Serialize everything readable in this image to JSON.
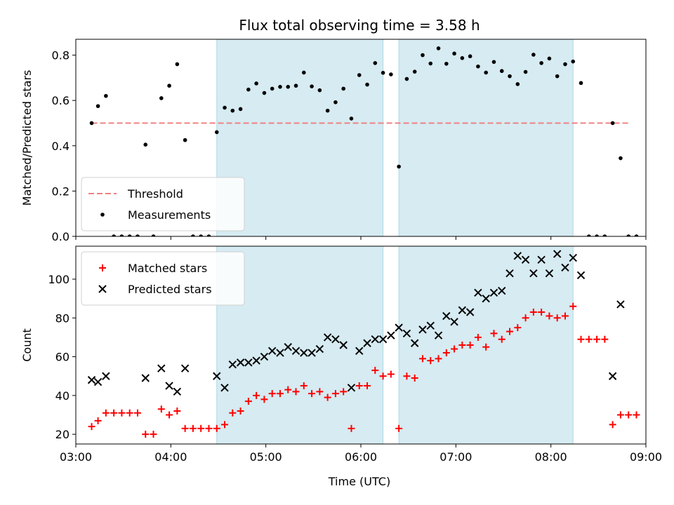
{
  "chart_data": [
    {
      "type": "scatter",
      "title": "Flux total observing time = 3.58 h",
      "xlabel": "",
      "ylabel": "Matched/Predicted stars",
      "xlim": [
        "03:00",
        "09:00"
      ],
      "ylim": [
        0,
        0.87
      ],
      "yticks": [
        "0.0",
        "0.2",
        "0.4",
        "0.6",
        "0.8"
      ],
      "grid": false,
      "legend_position": "lower-left",
      "shaded_intervals": [
        [
          "04:29",
          "06:14"
        ],
        [
          "06:24",
          "08:14"
        ]
      ],
      "threshold": {
        "name": "Threshold",
        "y": 0.5,
        "x_range": [
          "03:10",
          "08:50"
        ],
        "color": "#f08080",
        "style": "dashed"
      },
      "series": [
        {
          "name": "Measurements",
          "marker": "dot",
          "color": "#000000",
          "points": [
            [
              "03:10",
              0.5
            ],
            [
              "03:14",
              0.575
            ],
            [
              "03:19",
              0.62
            ],
            [
              "03:24",
              0.0
            ],
            [
              "03:29",
              0.0
            ],
            [
              "03:34",
              0.0
            ],
            [
              "03:39",
              0.0
            ],
            [
              "03:44",
              0.405
            ],
            [
              "03:49",
              0.0
            ],
            [
              "03:54",
              0.61
            ],
            [
              "03:59",
              0.665
            ],
            [
              "04:04",
              0.76
            ],
            [
              "04:09",
              0.425
            ],
            [
              "04:14",
              0.0
            ],
            [
              "04:19",
              0.0
            ],
            [
              "04:24",
              0.0
            ],
            [
              "04:29",
              0.46
            ],
            [
              "04:34",
              0.568
            ],
            [
              "04:39",
              0.555
            ],
            [
              "04:44",
              0.562
            ],
            [
              "04:49",
              0.648
            ],
            [
              "04:54",
              0.675
            ],
            [
              "04:59",
              0.633
            ],
            [
              "05:04",
              0.652
            ],
            [
              "05:09",
              0.66
            ],
            [
              "05:14",
              0.66
            ],
            [
              "05:19",
              0.665
            ],
            [
              "05:24",
              0.723
            ],
            [
              "05:29",
              0.662
            ],
            [
              "05:34",
              0.645
            ],
            [
              "05:39",
              0.555
            ],
            [
              "05:44",
              0.592
            ],
            [
              "05:49",
              0.652
            ],
            [
              "05:54",
              0.52
            ],
            [
              "05:59",
              0.712
            ],
            [
              "06:04",
              0.67
            ],
            [
              "06:09",
              0.765
            ],
            [
              "06:14",
              0.722
            ],
            [
              "06:19",
              0.715
            ],
            [
              "06:24",
              0.308
            ],
            [
              "06:29",
              0.695
            ],
            [
              "06:34",
              0.727
            ],
            [
              "06:39",
              0.8
            ],
            [
              "06:44",
              0.763
            ],
            [
              "06:49",
              0.83
            ],
            [
              "06:54",
              0.762
            ],
            [
              "06:59",
              0.807
            ],
            [
              "07:04",
              0.787
            ],
            [
              "07:09",
              0.795
            ],
            [
              "07:14",
              0.75
            ],
            [
              "07:19",
              0.723
            ],
            [
              "07:24",
              0.77
            ],
            [
              "07:29",
              0.73
            ],
            [
              "07:34",
              0.707
            ],
            [
              "07:39",
              0.672
            ],
            [
              "07:44",
              0.726
            ],
            [
              "07:49",
              0.802
            ],
            [
              "07:54",
              0.765
            ],
            [
              "07:59",
              0.785
            ],
            [
              "08:04",
              0.707
            ],
            [
              "08:09",
              0.76
            ],
            [
              "08:14",
              0.772
            ],
            [
              "08:19",
              0.677
            ],
            [
              "08:24",
              0.0
            ],
            [
              "08:29",
              0.0
            ],
            [
              "08:34",
              0.0
            ],
            [
              "08:39",
              0.5
            ],
            [
              "08:44",
              0.345
            ],
            [
              "08:49",
              0.0
            ],
            [
              "08:54",
              0.0
            ]
          ]
        }
      ]
    },
    {
      "type": "scatter",
      "title": "",
      "xlabel": "Time (UTC)",
      "ylabel": "Count",
      "xlim": [
        "03:00",
        "09:00"
      ],
      "xticks": [
        "03:00",
        "04:00",
        "05:00",
        "06:00",
        "07:00",
        "08:00",
        "09:00"
      ],
      "ylim": [
        15,
        117
      ],
      "yticks": [
        "20",
        "40",
        "60",
        "80",
        "100"
      ],
      "grid": false,
      "legend_position": "upper-left",
      "shaded_intervals": [
        [
          "04:29",
          "06:14"
        ],
        [
          "06:24",
          "08:14"
        ]
      ],
      "series": [
        {
          "name": "Matched stars",
          "marker": "plus",
          "color": "#ff0000",
          "points": [
            [
              "03:10",
              24
            ],
            [
              "03:14",
              27
            ],
            [
              "03:19",
              31
            ],
            [
              "03:24",
              31
            ],
            [
              "03:29",
              31
            ],
            [
              "03:34",
              31
            ],
            [
              "03:39",
              31
            ],
            [
              "03:44",
              20
            ],
            [
              "03:49",
              20
            ],
            [
              "03:54",
              33
            ],
            [
              "03:59",
              30
            ],
            [
              "04:04",
              32
            ],
            [
              "04:09",
              23
            ],
            [
              "04:14",
              23
            ],
            [
              "04:19",
              23
            ],
            [
              "04:24",
              23
            ],
            [
              "04:29",
              23
            ],
            [
              "04:34",
              25
            ],
            [
              "04:39",
              31
            ],
            [
              "04:44",
              32
            ],
            [
              "04:49",
              37
            ],
            [
              "04:54",
              40
            ],
            [
              "04:59",
              38
            ],
            [
              "05:04",
              41
            ],
            [
              "05:09",
              41
            ],
            [
              "05:14",
              43
            ],
            [
              "05:19",
              42
            ],
            [
              "05:24",
              45
            ],
            [
              "05:29",
              41
            ],
            [
              "05:34",
              42
            ],
            [
              "05:39",
              39
            ],
            [
              "05:44",
              41
            ],
            [
              "05:49",
              42
            ],
            [
              "05:54",
              23
            ],
            [
              "05:59",
              45
            ],
            [
              "06:04",
              45
            ],
            [
              "06:09",
              53
            ],
            [
              "06:14",
              50
            ],
            [
              "06:19",
              51
            ],
            [
              "06:24",
              23
            ],
            [
              "06:29",
              50
            ],
            [
              "06:34",
              49
            ],
            [
              "06:39",
              59
            ],
            [
              "06:44",
              58
            ],
            [
              "06:49",
              59
            ],
            [
              "06:54",
              62
            ],
            [
              "06:59",
              64
            ],
            [
              "07:04",
              66
            ],
            [
              "07:09",
              66
            ],
            [
              "07:14",
              70
            ],
            [
              "07:19",
              65
            ],
            [
              "07:24",
              72
            ],
            [
              "07:29",
              69
            ],
            [
              "07:34",
              73
            ],
            [
              "07:39",
              75
            ],
            [
              "07:44",
              80
            ],
            [
              "07:49",
              83
            ],
            [
              "07:54",
              83
            ],
            [
              "07:59",
              81
            ],
            [
              "08:04",
              80
            ],
            [
              "08:09",
              81
            ],
            [
              "08:14",
              86
            ],
            [
              "08:19",
              69
            ],
            [
              "08:24",
              69
            ],
            [
              "08:29",
              69
            ],
            [
              "08:34",
              69
            ],
            [
              "08:39",
              25
            ],
            [
              "08:44",
              30
            ],
            [
              "08:49",
              30
            ],
            [
              "08:54",
              30
            ]
          ]
        },
        {
          "name": "Predicted stars",
          "marker": "x",
          "color": "#000000",
          "points": [
            [
              "03:10",
              48
            ],
            [
              "03:14",
              47
            ],
            [
              "03:19",
              50
            ],
            [
              "03:44",
              49
            ],
            [
              "03:54",
              54
            ],
            [
              "03:59",
              45
            ],
            [
              "04:04",
              42
            ],
            [
              "04:09",
              54
            ],
            [
              "04:29",
              50
            ],
            [
              "04:34",
              44
            ],
            [
              "04:39",
              56
            ],
            [
              "04:44",
              57
            ],
            [
              "04:49",
              57
            ],
            [
              "04:54",
              58
            ],
            [
              "04:59",
              60
            ],
            [
              "05:04",
              63
            ],
            [
              "05:09",
              62
            ],
            [
              "05:14",
              65
            ],
            [
              "05:19",
              63
            ],
            [
              "05:24",
              62
            ],
            [
              "05:29",
              62
            ],
            [
              "05:34",
              64
            ],
            [
              "05:39",
              70
            ],
            [
              "05:44",
              69
            ],
            [
              "05:49",
              66
            ],
            [
              "05:54",
              44
            ],
            [
              "05:59",
              63
            ],
            [
              "06:04",
              67
            ],
            [
              "06:09",
              69
            ],
            [
              "06:14",
              69
            ],
            [
              "06:19",
              71
            ],
            [
              "06:24",
              75
            ],
            [
              "06:29",
              72
            ],
            [
              "06:34",
              67
            ],
            [
              "06:39",
              74
            ],
            [
              "06:44",
              76
            ],
            [
              "06:49",
              71
            ],
            [
              "06:54",
              81
            ],
            [
              "06:59",
              78
            ],
            [
              "07:04",
              84
            ],
            [
              "07:09",
              83
            ],
            [
              "07:14",
              93
            ],
            [
              "07:19",
              90
            ],
            [
              "07:24",
              93
            ],
            [
              "07:29",
              94
            ],
            [
              "07:34",
              103
            ],
            [
              "07:39",
              112
            ],
            [
              "07:44",
              110
            ],
            [
              "07:49",
              103
            ],
            [
              "07:54",
              110
            ],
            [
              "07:59",
              103
            ],
            [
              "08:04",
              113
            ],
            [
              "08:09",
              106
            ],
            [
              "08:14",
              111
            ],
            [
              "08:19",
              102
            ],
            [
              "08:39",
              50
            ],
            [
              "08:44",
              87
            ]
          ]
        }
      ]
    }
  ]
}
